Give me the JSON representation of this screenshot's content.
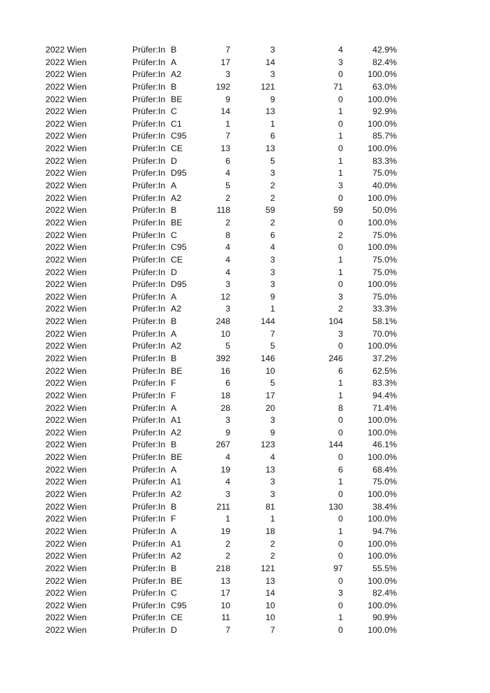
{
  "table": {
    "rows": [
      [
        "2022 Wien",
        "Prüfer:In",
        "B",
        "7",
        "3",
        "4",
        "42.9%"
      ],
      [
        "2022 Wien",
        "Prüfer:In",
        "A",
        "17",
        "14",
        "3",
        "82.4%"
      ],
      [
        "2022 Wien",
        "Prüfer:In",
        "A2",
        "3",
        "3",
        "0",
        "100.0%"
      ],
      [
        "2022 Wien",
        "Prüfer:In",
        "B",
        "192",
        "121",
        "71",
        "63.0%"
      ],
      [
        "2022 Wien",
        "Prüfer:In",
        "BE",
        "9",
        "9",
        "0",
        "100.0%"
      ],
      [
        "2022 Wien",
        "Prüfer:In",
        "C",
        "14",
        "13",
        "1",
        "92.9%"
      ],
      [
        "2022 Wien",
        "Prüfer:In",
        "C1",
        "1",
        "1",
        "0",
        "100.0%"
      ],
      [
        "2022 Wien",
        "Prüfer:In",
        "C95",
        "7",
        "6",
        "1",
        "85.7%"
      ],
      [
        "2022 Wien",
        "Prüfer:In",
        "CE",
        "13",
        "13",
        "0",
        "100.0%"
      ],
      [
        "2022 Wien",
        "Prüfer:In",
        "D",
        "6",
        "5",
        "1",
        "83.3%"
      ],
      [
        "2022 Wien",
        "Prüfer:In",
        "D95",
        "4",
        "3",
        "1",
        "75.0%"
      ],
      [
        "2022 Wien",
        "Prüfer:In",
        "A",
        "5",
        "2",
        "3",
        "40.0%"
      ],
      [
        "2022 Wien",
        "Prüfer:In",
        "A2",
        "2",
        "2",
        "0",
        "100.0%"
      ],
      [
        "2022 Wien",
        "Prüfer:In",
        "B",
        "118",
        "59",
        "59",
        "50.0%"
      ],
      [
        "2022 Wien",
        "Prüfer:In",
        "BE",
        "2",
        "2",
        "0",
        "100.0%"
      ],
      [
        "2022 Wien",
        "Prüfer:In",
        "C",
        "8",
        "6",
        "2",
        "75.0%"
      ],
      [
        "2022 Wien",
        "Prüfer:In",
        "C95",
        "4",
        "4",
        "0",
        "100.0%"
      ],
      [
        "2022 Wien",
        "Prüfer:In",
        "CE",
        "4",
        "3",
        "1",
        "75.0%"
      ],
      [
        "2022 Wien",
        "Prüfer:In",
        "D",
        "4",
        "3",
        "1",
        "75.0%"
      ],
      [
        "2022 Wien",
        "Prüfer:In",
        "D95",
        "3",
        "3",
        "0",
        "100.0%"
      ],
      [
        "2022 Wien",
        "Prüfer:In",
        "A",
        "12",
        "9",
        "3",
        "75.0%"
      ],
      [
        "2022 Wien",
        "Prüfer:In",
        "A2",
        "3",
        "1",
        "2",
        "33.3%"
      ],
      [
        "2022 Wien",
        "Prüfer:In",
        "B",
        "248",
        "144",
        "104",
        "58.1%"
      ],
      [
        "2022 Wien",
        "Prüfer:In",
        "A",
        "10",
        "7",
        "3",
        "70.0%"
      ],
      [
        "2022 Wien",
        "Prüfer:In",
        "A2",
        "5",
        "5",
        "0",
        "100.0%"
      ],
      [
        "2022 Wien",
        "Prüfer:In",
        "B",
        "392",
        "146",
        "246",
        "37.2%"
      ],
      [
        "2022 Wien",
        "Prüfer:In",
        "BE",
        "16",
        "10",
        "6",
        "62.5%"
      ],
      [
        "2022 Wien",
        "Prüfer:In",
        "F",
        "6",
        "5",
        "1",
        "83.3%"
      ],
      [
        "2022 Wien",
        "Prüfer:In",
        "F",
        "18",
        "17",
        "1",
        "94.4%"
      ],
      [
        "2022 Wien",
        "Prüfer:In",
        "A",
        "28",
        "20",
        "8",
        "71.4%"
      ],
      [
        "2022 Wien",
        "Prüfer:In",
        "A1",
        "3",
        "3",
        "0",
        "100.0%"
      ],
      [
        "2022 Wien",
        "Prüfer:In",
        "A2",
        "9",
        "9",
        "0",
        "100.0%"
      ],
      [
        "2022 Wien",
        "Prüfer:In",
        "B",
        "267",
        "123",
        "144",
        "46.1%"
      ],
      [
        "2022 Wien",
        "Prüfer:In",
        "BE",
        "4",
        "4",
        "0",
        "100.0%"
      ],
      [
        "2022 Wien",
        "Prüfer:In",
        "A",
        "19",
        "13",
        "6",
        "68.4%"
      ],
      [
        "2022 Wien",
        "Prüfer:In",
        "A1",
        "4",
        "3",
        "1",
        "75.0%"
      ],
      [
        "2022 Wien",
        "Prüfer:In",
        "A2",
        "3",
        "3",
        "0",
        "100.0%"
      ],
      [
        "2022 Wien",
        "Prüfer:In",
        "B",
        "211",
        "81",
        "130",
        "38.4%"
      ],
      [
        "2022 Wien",
        "Prüfer:In",
        "F",
        "1",
        "1",
        "0",
        "100.0%"
      ],
      [
        "2022 Wien",
        "Prüfer:In",
        "A",
        "19",
        "18",
        "1",
        "94.7%"
      ],
      [
        "2022 Wien",
        "Prüfer:In",
        "A1",
        "2",
        "2",
        "0",
        "100.0%"
      ],
      [
        "2022 Wien",
        "Prüfer:In",
        "A2",
        "2",
        "2",
        "0",
        "100.0%"
      ],
      [
        "2022 Wien",
        "Prüfer:In",
        "B",
        "218",
        "121",
        "97",
        "55.5%"
      ],
      [
        "2022 Wien",
        "Prüfer:In",
        "BE",
        "13",
        "13",
        "0",
        "100.0%"
      ],
      [
        "2022 Wien",
        "Prüfer:In",
        "C",
        "17",
        "14",
        "3",
        "82.4%"
      ],
      [
        "2022 Wien",
        "Prüfer:In",
        "C95",
        "10",
        "10",
        "0",
        "100.0%"
      ],
      [
        "2022 Wien",
        "Prüfer:In",
        "CE",
        "11",
        "10",
        "1",
        "90.9%"
      ],
      [
        "2022 Wien",
        "Prüfer:In",
        "D",
        "7",
        "7",
        "0",
        "100.0%"
      ]
    ]
  }
}
